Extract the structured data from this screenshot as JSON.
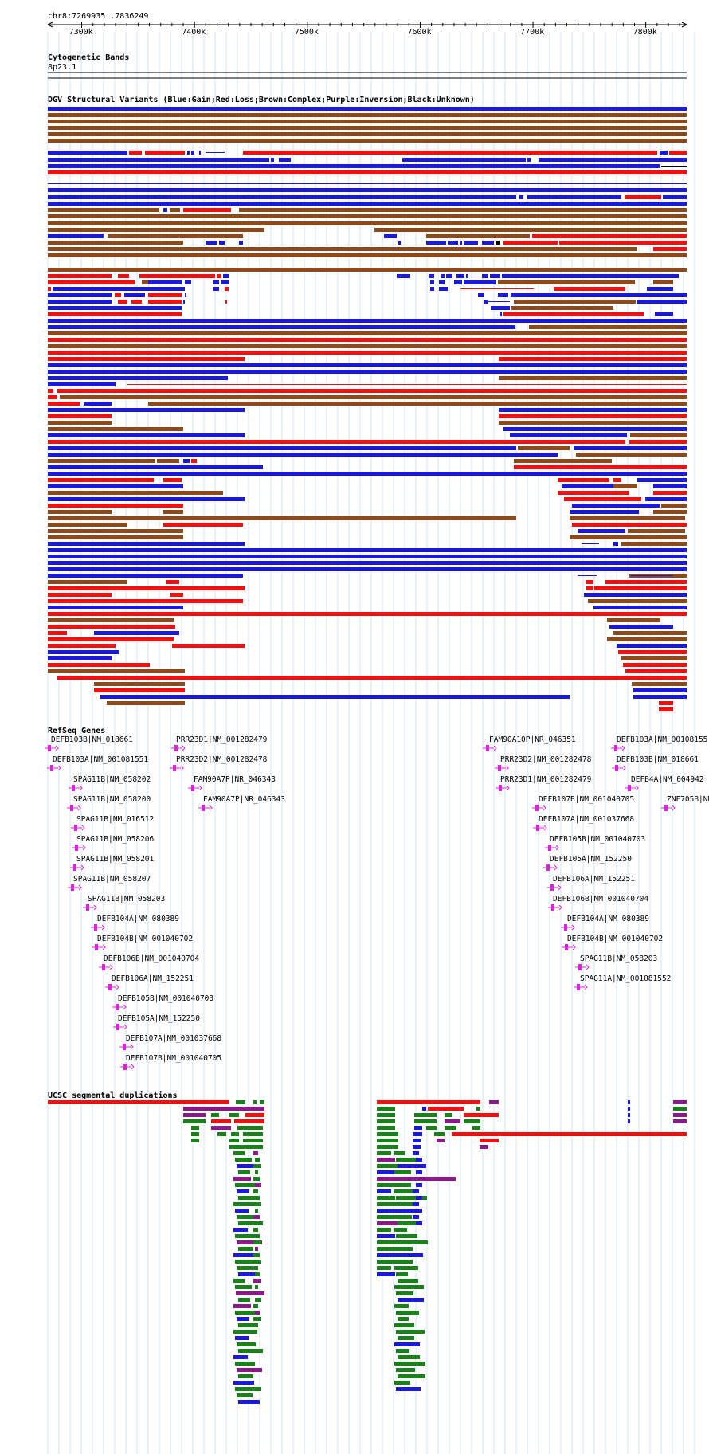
{
  "ruler": {
    "location": "chr8:7269935..7836249",
    "start": 7269935,
    "end": 7836249,
    "ticks": [
      {
        "pos": 7300000,
        "label": "7300k"
      },
      {
        "pos": 7400000,
        "label": "7400k"
      },
      {
        "pos": 7500000,
        "label": "7500k"
      },
      {
        "pos": 7600000,
        "label": "7600k"
      },
      {
        "pos": 7700000,
        "label": "7700k"
      },
      {
        "pos": 7800000,
        "label": "7800k"
      }
    ]
  },
  "cytoband_track": {
    "title": "Cytogenetic Bands",
    "band": "8p23.1"
  },
  "dgv_track": {
    "title": "DGV Structural Variants (Blue:Gain;Red:Loss;Brown:Complex;Purple:Inversion;Black:Unknown)",
    "colors": {
      "gain": "#1a1ad8",
      "loss": "#f01010",
      "complex": "#8c4a1a",
      "inversion": "#8a1a8a",
      "unknown": "#000000"
    }
  },
  "refseq_track": {
    "title": "RefSeq Genes",
    "genes": [
      "DEFB103B|NM_018661",
      "DEFB103A|NM_001081551",
      "SPAG11B|NM_058202",
      "SPAG11B|NM_058200",
      "SPAG11B|NM_016512",
      "SPAG11B|NM_058206",
      "SPAG11B|NM_058201",
      "SPAG11B|NM_058207",
      "SPAG11B|NM_058203",
      "DEFB104A|NM_080389",
      "DEFB104B|NM_001040702",
      "DEFB106B|NM_001040704",
      "DEFB106A|NM_152251",
      "DEFB105B|NM_001040703",
      "DEFB105A|NM_152250",
      "DEFB107A|NM_001037668",
      "DEFB107B|NM_001040705",
      "PRR23D1|NM_001282479",
      "PRR23D2|NM_001282478",
      "FAM90A7P|NR_046343",
      "FAM90A7P|NR_046343",
      "FAM90A10P|NR_046351",
      "PRR23D2|NM_001282478",
      "PRR23D1|NM_001282479",
      "DEFB107B|NM_001040705",
      "DEFB107A|NM_001037668",
      "DEFB105B|NM_001040703",
      "DEFB105A|NM_152250",
      "DEFB106A|NM_152251",
      "DEFB106B|NM_001040704",
      "DEFB104A|NM_080389",
      "DEFB104B|NM_001040702",
      "SPAG11B|NM_058203",
      "SPAG11A|NM_001081552",
      "DEFB103A|NM_00108155",
      "DEFB103B|NM_018661",
      "DEFB4A|NM_004942",
      "ZNF705B|NM"
    ]
  },
  "segdup_track": {
    "title": "UCSC segmental duplications",
    "colors": {
      "high": "#f01010",
      "mid": "#8a1a8a",
      "low": "#1a1ad8",
      "lower": "#1a801a"
    }
  }
}
